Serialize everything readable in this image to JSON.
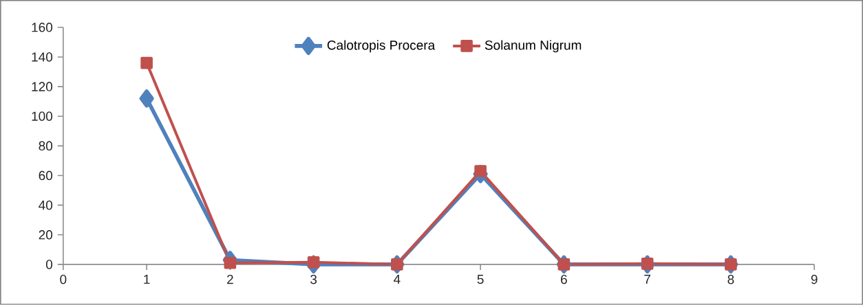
{
  "chart_data": {
    "type": "line",
    "x": [
      1,
      2,
      3,
      4,
      5,
      6,
      7,
      8
    ],
    "series": [
      {
        "name": "Calotropis Procera",
        "color": "#4f81bd",
        "marker": "diamond",
        "values": [
          112,
          3,
          0,
          0,
          61,
          0,
          0,
          0
        ]
      },
      {
        "name": "Solanum Nigrum",
        "color": "#c0504d",
        "marker": "square",
        "values": [
          136,
          1,
          1.5,
          0,
          63,
          0,
          0.5,
          0
        ]
      }
    ],
    "xlim": [
      0,
      9
    ],
    "xticks": [
      0,
      1,
      2,
      3,
      4,
      5,
      6,
      7,
      8,
      9
    ],
    "ylim": [
      0,
      160
    ],
    "yticks": [
      0,
      20,
      40,
      60,
      80,
      100,
      120,
      140,
      160
    ],
    "grid": false,
    "legend": "top",
    "line_style": "solid"
  }
}
